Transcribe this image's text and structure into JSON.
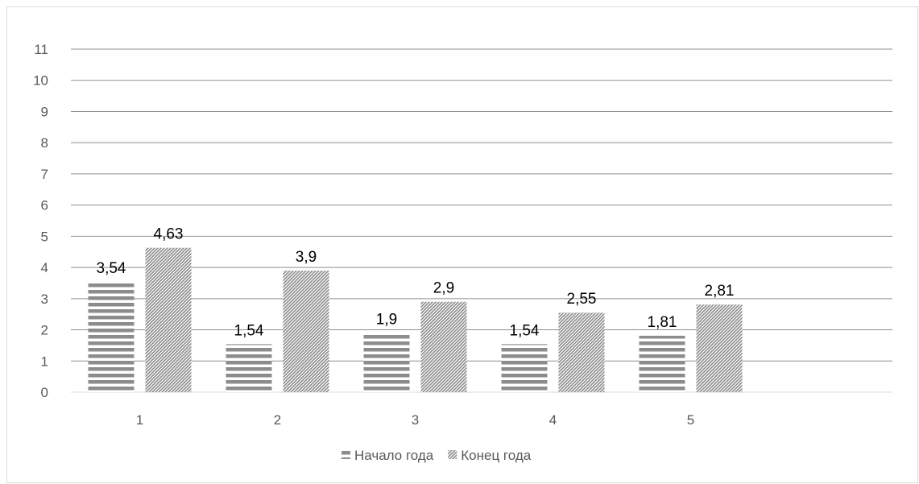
{
  "chart_data": {
    "type": "bar",
    "title": "",
    "xlabel": "",
    "ylabel": "",
    "categories": [
      "1",
      "2",
      "3",
      "4",
      "5"
    ],
    "ylim": [
      0,
      11
    ],
    "yticks": [
      "0",
      "1",
      "2",
      "3",
      "4",
      "5",
      "6",
      "7",
      "8",
      "9",
      "10",
      "11"
    ],
    "grid": true,
    "legend_position": "bottom",
    "series": [
      {
        "name": "Начало года",
        "values": [
          3.54,
          1.54,
          1.9,
          1.54,
          1.81
        ],
        "labels": [
          "3,54",
          "1,54",
          "1,9",
          "1,54",
          "1,81"
        ],
        "pattern": "horizontal-stripes",
        "color": "#8c8c8c"
      },
      {
        "name": "Конец года",
        "values": [
          4.63,
          3.9,
          2.9,
          2.55,
          2.81
        ],
        "labels": [
          "4,63",
          "3,9",
          "2,9",
          "2,55",
          "2,81"
        ],
        "pattern": "diagonal-hatch",
        "color": "#8c8c8c"
      }
    ]
  }
}
